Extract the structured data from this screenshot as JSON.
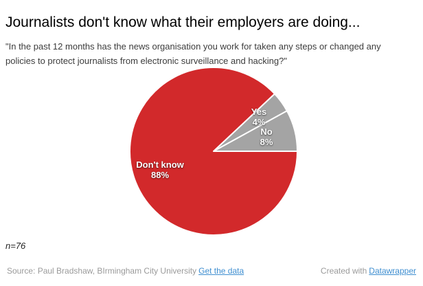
{
  "chart_data": {
    "type": "pie",
    "title": "Journalists don't know what their employers are doing...",
    "subtitle": "\"In the past 12 months has the news organisation you work for taken any steps or changed any policies to protect journalists from electronic surveillance and hacking?\"",
    "n_label": "n=76",
    "slices": [
      {
        "label": "Yes",
        "value": 4,
        "pct_label": "4%",
        "color": "#a4a4a4"
      },
      {
        "label": "No",
        "value": 8,
        "pct_label": "8%",
        "color": "#a4a4a4"
      },
      {
        "label": "Don't know",
        "value": 88,
        "pct_label": "88%",
        "color": "#d2292b"
      }
    ],
    "start_angle_deg": 46.8,
    "stroke_color": "#ffffff",
    "legend": "none",
    "value_labels": "inside"
  },
  "footer": {
    "source_prefix": "Source: Paul Bradshaw, BIrmingham City University",
    "source_link_label": "Get the data",
    "credit_prefix": "Created with",
    "credit_link_label": "Datawrapper",
    "link_color": "#3e8ed0",
    "text_color": "#9a9a9a"
  }
}
